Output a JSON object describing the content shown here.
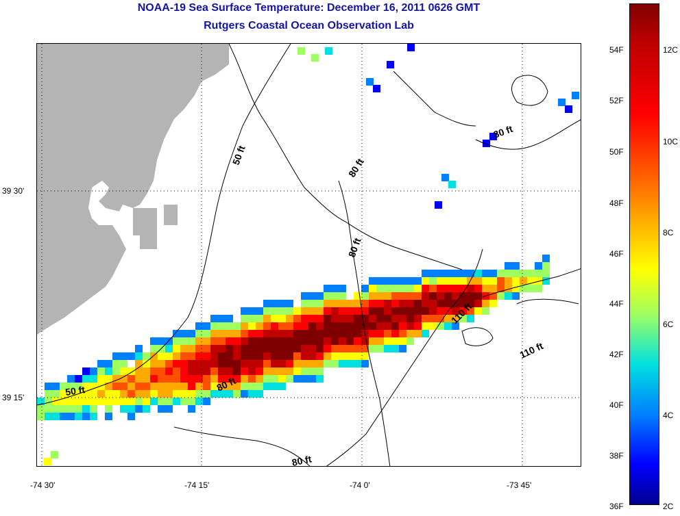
{
  "header": {
    "title": "NOAA-19 Sea Surface Temperature:  December 16, 2011 0626 GMT",
    "subtitle": "Rutgers Coastal Ocean Observation Lab"
  },
  "axes": {
    "x_ticks": [
      "-74 30'",
      "-74 15'",
      "-74 0'",
      "-73 45'"
    ],
    "y_ticks": [
      "39 30'",
      "39 15'"
    ]
  },
  "contours": {
    "labels": [
      "50 ft",
      "50 ft",
      "80 ft",
      "80 ft",
      "80 ft",
      "80 ft",
      "80 ft",
      "110 ft",
      "110 ft"
    ]
  },
  "colorbar": {
    "fahrenheit_labels": [
      "54F",
      "52F",
      "50F",
      "48F",
      "46F",
      "44F",
      "42F",
      "40F",
      "38F",
      "36F"
    ],
    "celsius_labels": [
      "12C",
      "10C",
      "8C",
      "6C",
      "4C",
      "2C"
    ],
    "colormap": "jet",
    "land_color": "#b4b4b4"
  }
}
